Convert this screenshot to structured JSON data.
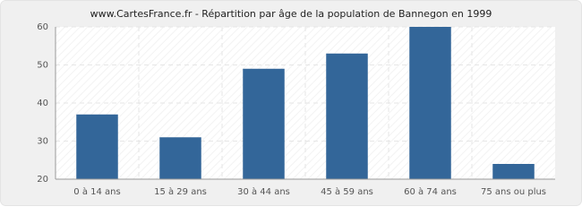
{
  "chart_data": {
    "type": "bar",
    "title": "www.CartesFrance.fr - Répartition par âge de la population de Bannegon en 1999",
    "categories": [
      "0 à 14 ans",
      "15 à 29 ans",
      "30 à 44 ans",
      "45 à 59 ans",
      "60 à 74 ans",
      "75 ans ou plus"
    ],
    "values": [
      37,
      31,
      49,
      53,
      60,
      24
    ],
    "color": "#336699",
    "ylim": [
      20,
      60
    ],
    "yticks": [
      20,
      30,
      40,
      50,
      60
    ],
    "grid": true
  }
}
